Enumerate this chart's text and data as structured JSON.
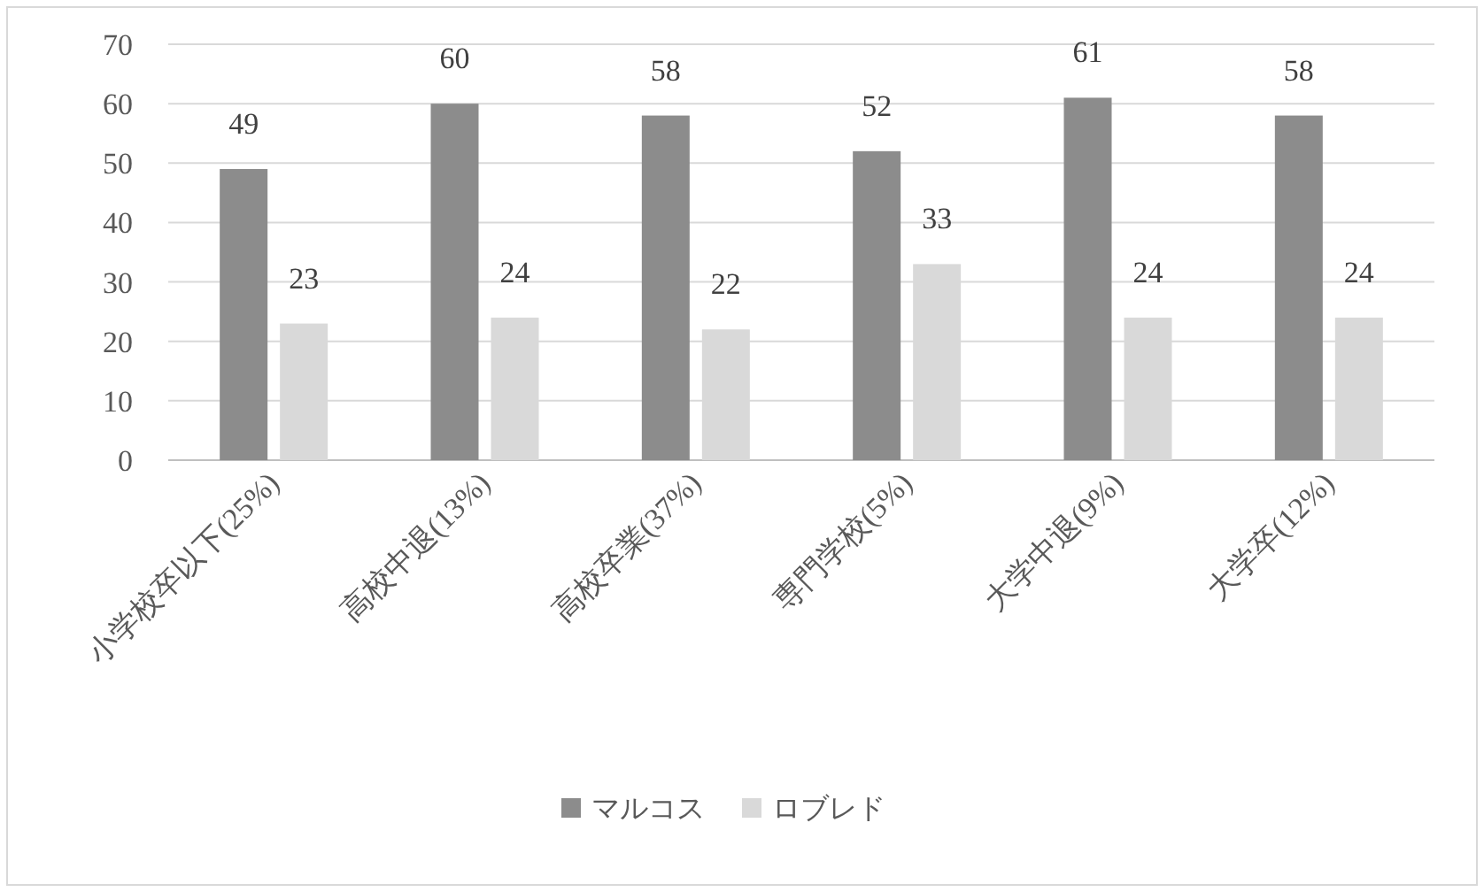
{
  "chart_data": {
    "type": "bar",
    "categories": [
      "小学校卒以下(25%)",
      "高校中退(13%)",
      "高校卒業(37%)",
      "専門学校(5%)",
      "大学中退(9%)",
      "大学卒(12%)"
    ],
    "series": [
      {
        "name": "マルコス",
        "color": "#8c8c8c",
        "values": [
          49,
          60,
          58,
          52,
          61,
          58
        ]
      },
      {
        "name": "ロブレド",
        "color": "#d9d9d9",
        "values": [
          23,
          24,
          22,
          33,
          24,
          24
        ]
      }
    ],
    "ylim": [
      0,
      70
    ],
    "yticks": [
      0,
      10,
      20,
      30,
      40,
      50,
      60,
      70
    ],
    "grid": "y",
    "legend": "bottom",
    "data_labels": true
  }
}
